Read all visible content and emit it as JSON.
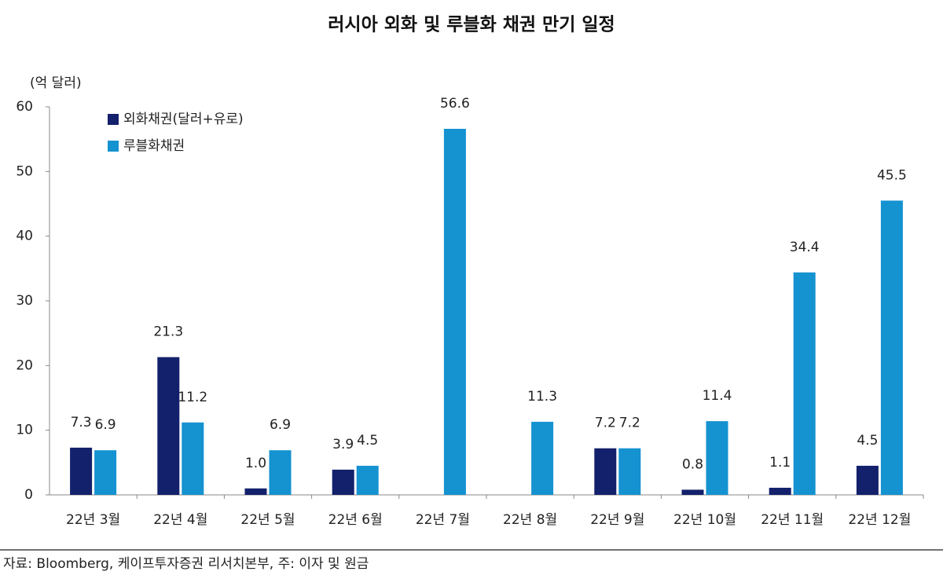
{
  "chart_data": {
    "type": "bar",
    "title": "러시아 외화 및 루블화 채권 만기 일정",
    "y_label": "(억 달러)",
    "source": "자료: Bloomberg, 케이프투자증권 리서치본부, 주: 이자 및 원금",
    "categories": [
      "22년 3월",
      "22년 4월",
      "22년 5월",
      "22년 6월",
      "22년 7월",
      "22년 8월",
      "22년 9월",
      "22년 10월",
      "22년 11월",
      "22년 12월"
    ],
    "series": [
      {
        "name": "외화채권(달러+유로)",
        "color": "#13206b",
        "values": [
          7.3,
          21.3,
          1.0,
          3.9,
          null,
          null,
          7.2,
          0.8,
          1.1,
          4.5
        ],
        "value_labels": [
          "7.3",
          "21.3",
          "1.0",
          "3.9",
          null,
          null,
          "7.2",
          "0.8",
          "1.1",
          "4.5"
        ]
      },
      {
        "name": "루블화채권",
        "color": "#1592d0",
        "values": [
          6.9,
          11.2,
          6.9,
          4.5,
          56.6,
          11.3,
          7.2,
          11.4,
          34.4,
          45.5
        ]
      }
    ],
    "ylim": [
      0,
      60
    ],
    "yticks": [
      0,
      10,
      20,
      30,
      40,
      50,
      60
    ],
    "legend": "top-left"
  }
}
